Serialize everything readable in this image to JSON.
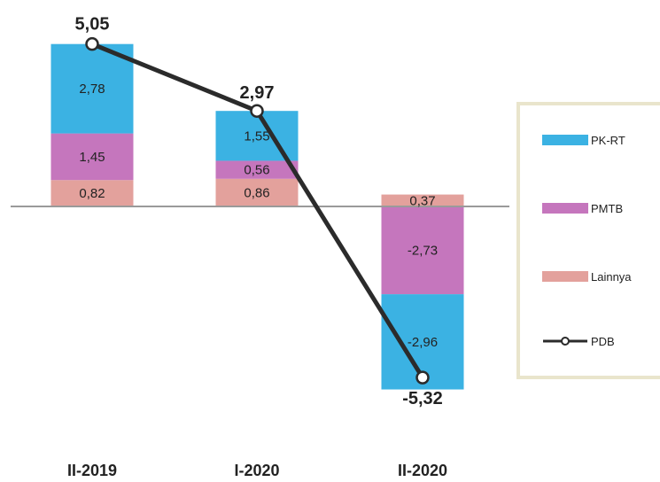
{
  "colors": {
    "pk_rt": "#3bb2e3",
    "pmtb": "#c576bd",
    "lainnya": "#e3a19c",
    "pdb": "#2b2b2b",
    "axis": "#9a9a9a",
    "legend_border": "#e9e5cc"
  },
  "chart_data": {
    "type": "bar",
    "stacked": true,
    "categories": [
      "II-2019",
      "I-2020",
      "II-2020"
    ],
    "series": [
      {
        "name": "Lainnya",
        "values": [
          0.82,
          0.86,
          0.37
        ],
        "labels": [
          "0,82",
          "0,86",
          "0,37"
        ],
        "color": "#e3a19c"
      },
      {
        "name": "PMTB",
        "values": [
          1.45,
          0.56,
          -2.73
        ],
        "labels": [
          "1,45",
          "0,56",
          "-2,73"
        ],
        "color": "#c576bd"
      },
      {
        "name": "PK-RT",
        "values": [
          2.78,
          1.55,
          -2.96
        ],
        "labels": [
          "2,78",
          "1,55",
          "-2,96"
        ],
        "color": "#3bb2e3"
      }
    ],
    "line": {
      "name": "PDB",
      "type": "line",
      "values": [
        5.05,
        2.97,
        -5.32
      ],
      "labels": [
        "5,05",
        "2,97",
        "-5,32"
      ]
    },
    "ylim": [
      -6.3,
      6.0
    ],
    "grid": false,
    "legend": {
      "position": "right",
      "items": [
        {
          "label": "PK-RT",
          "kind": "box",
          "series": "PK-RT"
        },
        {
          "label": "PMTB",
          "kind": "box",
          "series": "PMTB"
        },
        {
          "label": "Lainnya",
          "kind": "box",
          "series": "Lainnya"
        },
        {
          "label": "PDB",
          "kind": "line",
          "series": "PDB"
        }
      ]
    }
  }
}
